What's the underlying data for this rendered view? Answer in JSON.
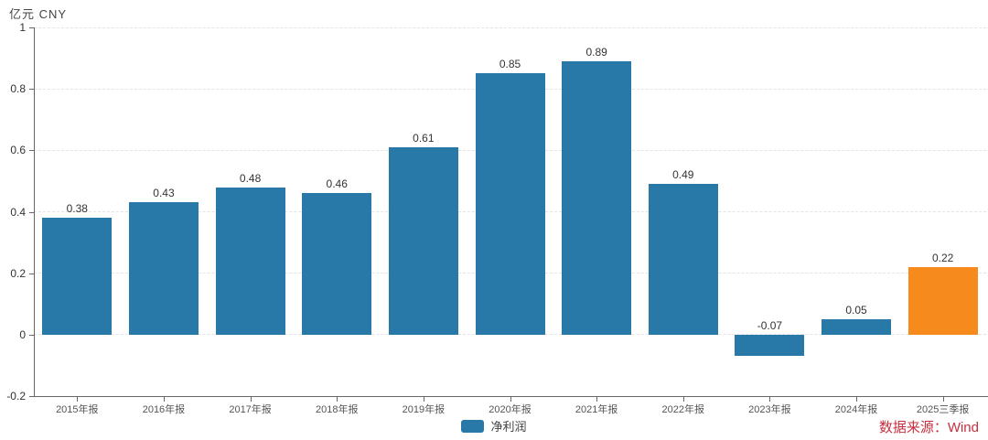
{
  "header": {
    "unit_label": "亿元  CNY"
  },
  "legend": {
    "items": [
      {
        "label": "净利润",
        "color": "#2878a8"
      }
    ]
  },
  "source": {
    "text": "数据来源：Wind",
    "color": "#c5303e"
  },
  "colors": {
    "bar_default": "#2878a8",
    "bar_highlight": "#f68a1c",
    "axis": "#666666",
    "grid": "#e4e4e4"
  },
  "chart_data": {
    "type": "bar",
    "title": "",
    "xlabel": "",
    "ylabel": "亿元 CNY",
    "categories": [
      "2015年报",
      "2016年报",
      "2017年报",
      "2018年报",
      "2019年报",
      "2020年报",
      "2021年报",
      "2022年报",
      "2023年报",
      "2024年报",
      "2025三季报"
    ],
    "series": [
      {
        "name": "净利润",
        "values": [
          0.38,
          0.43,
          0.48,
          0.46,
          0.61,
          0.85,
          0.89,
          0.49,
          -0.07,
          0.05,
          0.22
        ]
      }
    ],
    "value_labels": [
      "0.38",
      "0.43",
      "0.48",
      "0.46",
      "0.61",
      "0.85",
      "0.89",
      "0.49",
      "-0.07",
      "0.05",
      "0.22"
    ],
    "bar_colors": [
      "#2878a8",
      "#2878a8",
      "#2878a8",
      "#2878a8",
      "#2878a8",
      "#2878a8",
      "#2878a8",
      "#2878a8",
      "#2878a8",
      "#2878a8",
      "#f68a1c"
    ],
    "ylim": [
      -0.2,
      1.0
    ],
    "yticks": [
      1,
      0.8,
      0.6,
      0.4,
      0.2,
      0,
      -0.2
    ],
    "grid": "horizontal-dashed",
    "legend_position": "bottom"
  }
}
